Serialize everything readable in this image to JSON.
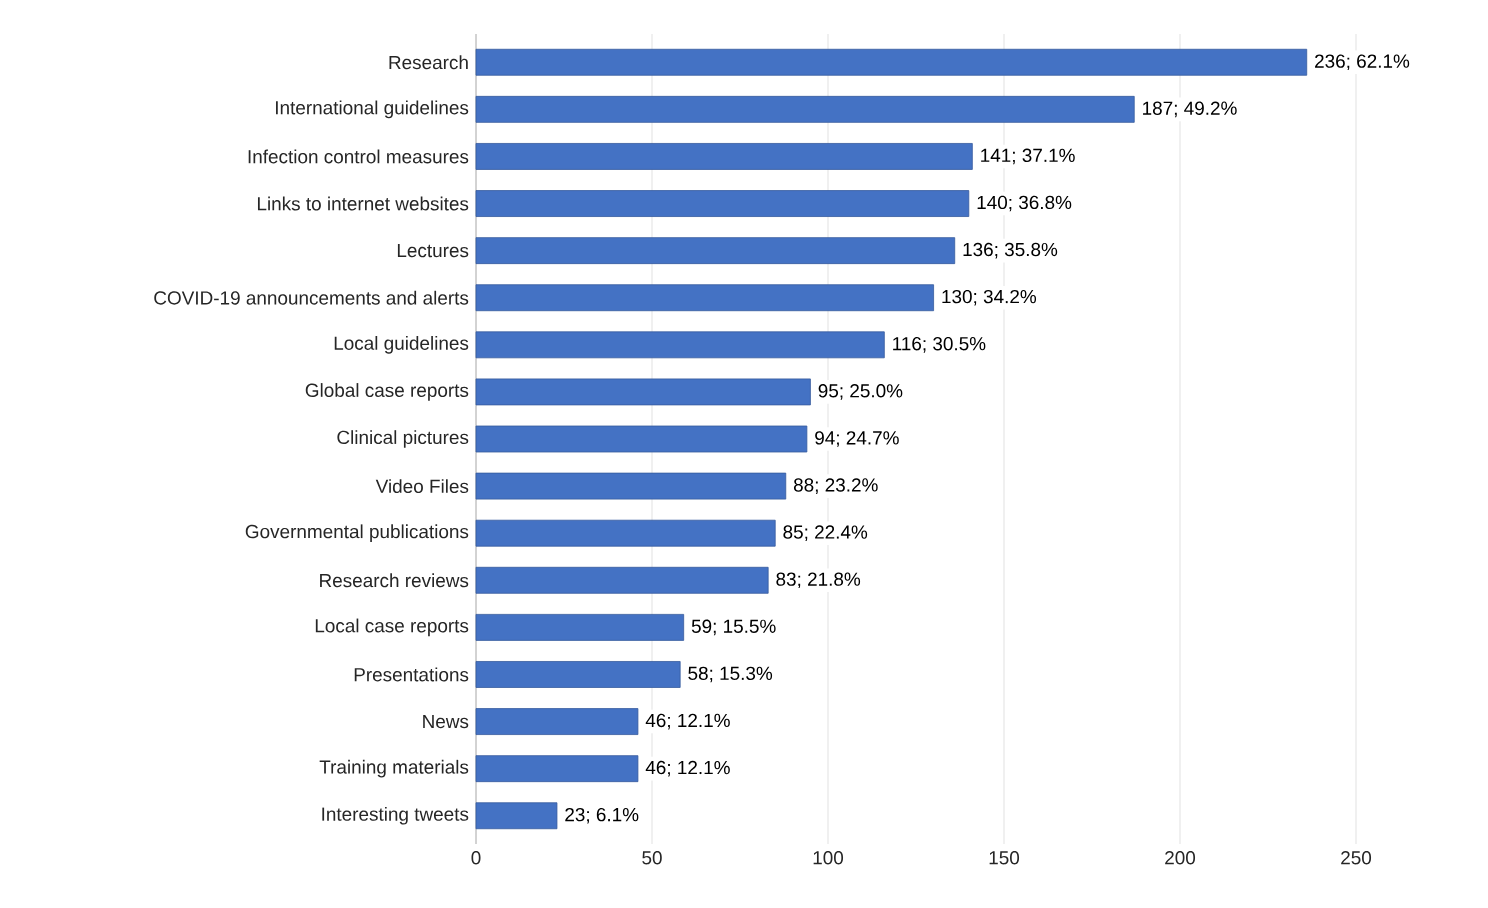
{
  "chart_data": {
    "type": "bar",
    "orientation": "horizontal",
    "color": "#4472c4",
    "grid": "x",
    "categories": [
      "Research",
      "International guidelines",
      "Infection control measures",
      "Links to internet websites",
      "Lectures",
      "COVID-19 announcements and alerts",
      "Local guidelines",
      "Global case reports",
      "Clinical pictures",
      "Video Files",
      "Governmental publications",
      "Research reviews",
      "Local case reports",
      "Presentations",
      "News",
      "Training materials",
      "Interesting tweets"
    ],
    "values": [
      236,
      187,
      141,
      140,
      136,
      130,
      116,
      95,
      94,
      88,
      85,
      83,
      59,
      58,
      46,
      46,
      23
    ],
    "value_labels": [
      "236; 62.1%",
      "187; 49.2%",
      "141; 37.1%",
      "140; 36.8%",
      "136; 35.8%",
      "130; 34.2%",
      "116; 30.5%",
      "95; 25.0%",
      "94; 24.7%",
      "88; 23.2%",
      "85; 22.4%",
      "83; 21.8%",
      "59; 15.5%",
      "58; 15.3%",
      "46; 12.1%",
      "46; 12.1%",
      "23; 6.1%"
    ],
    "xlim": [
      0,
      250
    ],
    "xticks": [
      0,
      50,
      100,
      150,
      200,
      250
    ]
  }
}
